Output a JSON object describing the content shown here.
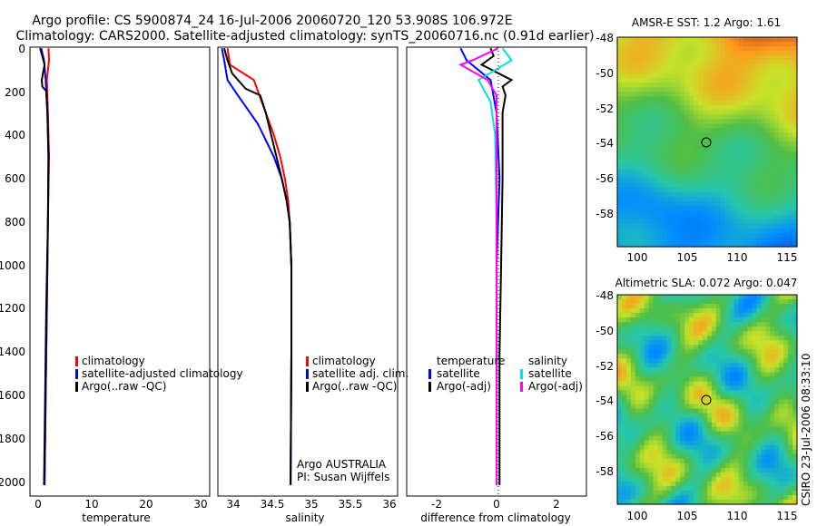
{
  "title": {
    "line1": "Argo profile: CS 5900874_24 16-Jul-2006 20060720_120 53.908S 106.972E",
    "line2": "Climatology: CARS2000. Satellite-adjusted climatology: synTS_20060716.nc (0.91d earlier)"
  },
  "depth_ticks": [
    "0",
    "200",
    "400",
    "600",
    "800",
    "1000",
    "1200",
    "1400",
    "1600",
    "1800",
    "2000"
  ],
  "colors": {
    "red": "#ff0000",
    "blue": "#0000ff",
    "black": "#000000",
    "cyan": "#00e0e0",
    "magenta": "#ff00ff"
  },
  "chart_data": [
    {
      "type": "line",
      "panel": "temperature",
      "xlabel": "temperature",
      "xlim": [
        -1,
        31
      ],
      "ylim": [
        2050,
        0
      ],
      "xticks": [
        "0",
        "10",
        "20",
        "30"
      ],
      "legend": [
        "climatology",
        "satellite-adjusted climatology",
        "Argo(..raw -QC)"
      ],
      "series": [
        {
          "name": "climatology",
          "color": "red",
          "points": [
            [
              2.3,
              5
            ],
            [
              2.4,
              60
            ],
            [
              2.0,
              150
            ],
            [
              2.2,
              300
            ],
            [
              2.4,
              500
            ],
            [
              2.2,
              800
            ],
            [
              2.0,
              1200
            ],
            [
              1.8,
              1600
            ],
            [
              1.6,
              2000
            ]
          ]
        },
        {
          "name": "satellite-adjusted climatology",
          "color": "blue",
          "points": [
            [
              1.0,
              5
            ],
            [
              1.5,
              60
            ],
            [
              1.8,
              150
            ],
            [
              2.1,
              300
            ],
            [
              2.3,
              500
            ],
            [
              2.2,
              800
            ],
            [
              2.0,
              1200
            ],
            [
              1.8,
              1600
            ],
            [
              1.6,
              2000
            ]
          ]
        },
        {
          "name": "Argo(..raw -QC)",
          "color": "black",
          "points": [
            [
              0.8,
              5
            ],
            [
              1.2,
              40
            ],
            [
              1.6,
              80
            ],
            [
              1.1,
              150
            ],
            [
              1.2,
              180
            ],
            [
              1.9,
              200
            ],
            [
              2.1,
              300
            ],
            [
              2.3,
              500
            ],
            [
              2.2,
              800
            ],
            [
              1.9,
              1200
            ],
            [
              1.7,
              1600
            ],
            [
              1.5,
              2000
            ]
          ]
        }
      ]
    },
    {
      "type": "line",
      "panel": "salinity",
      "xlabel": "salinity",
      "xlim": [
        33.8,
        36.05
      ],
      "ylim": [
        2050,
        0
      ],
      "xticks": [
        "34",
        "34.5",
        "35",
        "35.5",
        "36"
      ],
      "legend": [
        "climatology",
        "satellite adj. clim.",
        "Argo(..raw -QC)"
      ],
      "annotation": [
        "Argo AUSTRALIA",
        "PI: Susan Wijffels"
      ],
      "series": [
        {
          "name": "climatology",
          "color": "red",
          "points": [
            [
              33.92,
              5
            ],
            [
              33.95,
              80
            ],
            [
              34.25,
              150
            ],
            [
              34.3,
              200
            ],
            [
              34.4,
              300
            ],
            [
              34.5,
              400
            ],
            [
              34.58,
              500
            ],
            [
              34.64,
              600
            ],
            [
              34.68,
              700
            ],
            [
              34.7,
              800
            ],
            [
              34.72,
              1000
            ],
            [
              34.72,
              1400
            ],
            [
              34.71,
              2000
            ]
          ]
        },
        {
          "name": "satellite adj. clim.",
          "color": "blue",
          "points": [
            [
              33.85,
              5
            ],
            [
              33.88,
              60
            ],
            [
              33.92,
              150
            ],
            [
              34.05,
              220
            ],
            [
              34.3,
              350
            ],
            [
              34.5,
              500
            ],
            [
              34.6,
              600
            ],
            [
              34.66,
              700
            ],
            [
              34.7,
              800
            ],
            [
              34.72,
              1000
            ],
            [
              34.72,
              1400
            ],
            [
              34.71,
              2000
            ]
          ]
        },
        {
          "name": "Argo(..raw -QC)",
          "color": "black",
          "points": [
            [
              33.88,
              5
            ],
            [
              33.92,
              60
            ],
            [
              33.98,
              120
            ],
            [
              34.15,
              190
            ],
            [
              34.33,
              220
            ],
            [
              34.4,
              300
            ],
            [
              34.5,
              450
            ],
            [
              34.6,
              600
            ],
            [
              34.66,
              700
            ],
            [
              34.7,
              800
            ],
            [
              34.72,
              1000
            ],
            [
              34.72,
              1400
            ],
            [
              34.71,
              2000
            ]
          ]
        }
      ]
    },
    {
      "type": "line",
      "panel": "difference",
      "xlabel": "difference from climatology",
      "xlim": [
        -3,
        3
      ],
      "ylim": [
        2050,
        0
      ],
      "xticks": [
        "-2",
        "0",
        "2"
      ],
      "legend_temperature": [
        "temperature",
        "satellite",
        "Argo(-adj)"
      ],
      "legend_salinity": [
        "salinity",
        "satellite",
        "Argo(-adj)"
      ],
      "series": [
        {
          "name": "temperature satellite",
          "color": "blue",
          "points": [
            [
              -1.2,
              5
            ],
            [
              -1.0,
              60
            ],
            [
              -0.2,
              150
            ],
            [
              0.0,
              300
            ],
            [
              0.1,
              600
            ],
            [
              0.0,
              1000
            ],
            [
              0.0,
              1400
            ],
            [
              0.0,
              2000
            ]
          ]
        },
        {
          "name": "temperature Argo(-adj)",
          "color": "black",
          "points": [
            [
              -0.2,
              5
            ],
            [
              -0.1,
              40
            ],
            [
              -0.5,
              80
            ],
            [
              0.5,
              150
            ],
            [
              0.2,
              180
            ],
            [
              0.3,
              220
            ],
            [
              0.2,
              300
            ],
            [
              0.2,
              600
            ],
            [
              0.15,
              1000
            ],
            [
              0.1,
              1400
            ],
            [
              0.1,
              2000
            ]
          ]
        },
        {
          "name": "salinity satellite",
          "color": "cyan",
          "points": [
            [
              0.2,
              5
            ],
            [
              0.5,
              60
            ],
            [
              -0.6,
              150
            ],
            [
              -0.2,
              250
            ],
            [
              -0.05,
              400
            ],
            [
              0.0,
              800
            ],
            [
              0.0,
              1400
            ],
            [
              0.0,
              2000
            ]
          ]
        },
        {
          "name": "salinity Argo(-adj)",
          "color": "magenta",
          "points": [
            [
              0.05,
              5
            ],
            [
              -0.8,
              60
            ],
            [
              -1.2,
              80
            ],
            [
              -0.3,
              150
            ],
            [
              0.0,
              220
            ],
            [
              0.0,
              300
            ],
            [
              0.0,
              2000
            ]
          ]
        }
      ]
    },
    {
      "type": "heatmap",
      "title": "AMSR-E SST: 1.2 Argo: 1.61",
      "xlim": [
        98,
        116
      ],
      "ylim": [
        -59.8,
        -48
      ],
      "xticks": [
        "100",
        "105",
        "110",
        "115"
      ],
      "yticks": [
        "-48",
        "-50",
        "-52",
        "-54",
        "-56",
        "-58"
      ],
      "marker": {
        "lon": 106.97,
        "lat": -53.9
      }
    },
    {
      "type": "heatmap",
      "title": "Altimetric SLA: 0.072 Argo: 0.047",
      "xlim": [
        98,
        116
      ],
      "ylim": [
        -59.8,
        -48
      ],
      "xticks": [
        "100",
        "105",
        "110",
        "115"
      ],
      "yticks": [
        "-48",
        "-50",
        "-52",
        "-54",
        "-56",
        "-58"
      ],
      "marker": {
        "lon": 106.97,
        "lat": -53.9
      }
    }
  ],
  "credit": "CSIRO 23-Jul-2006 08:33:10"
}
